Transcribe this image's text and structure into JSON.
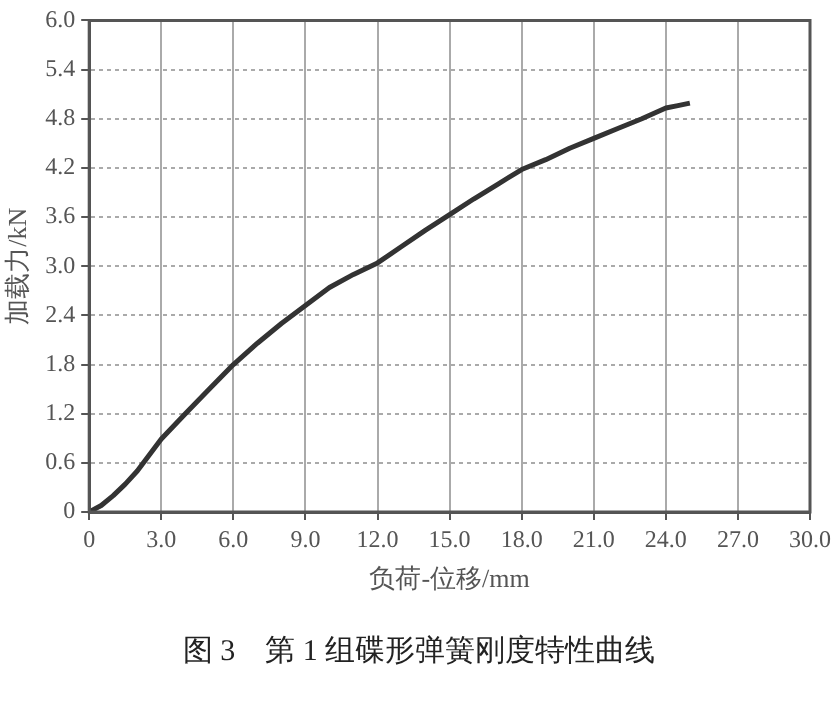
{
  "chart_data": {
    "type": "line",
    "xlabel": "负荷-位移/mm",
    "ylabel": "加载力/kN",
    "annotations": [
      "图 3　第 1 组碟形弹簧刚度特性曲线"
    ],
    "series": [
      {
        "color": "#333333",
        "x": [
          0,
          0.5,
          1,
          1.5,
          2,
          3,
          4,
          5,
          6,
          7,
          8,
          9,
          10,
          11,
          12,
          13,
          14,
          15,
          16,
          17,
          18,
          19,
          20,
          21,
          22,
          23,
          24,
          24.5,
          25
        ],
        "values": [
          0,
          0.08,
          0.2,
          0.34,
          0.5,
          0.89,
          1.2,
          1.5,
          1.8,
          2.06,
          2.3,
          2.52,
          2.74,
          2.9,
          3.04,
          3.24,
          3.44,
          3.63,
          3.82,
          4.0,
          4.18,
          4.3,
          4.44,
          4.56,
          4.68,
          4.8,
          4.93,
          4.96,
          4.99
        ]
      }
    ],
    "xlim": [
      0,
      30
    ],
    "xticks": [
      0,
      {
        "value": 3,
        "label": "3.0"
      },
      {
        "value": 6,
        "label": "6.0"
      },
      {
        "value": 9,
        "label": "9.0"
      },
      {
        "value": 12,
        "label": "12.0"
      },
      {
        "value": 15,
        "label": "15.0"
      },
      {
        "value": 18,
        "label": "18.0"
      },
      {
        "value": 21,
        "label": "21.0"
      },
      {
        "value": 24,
        "label": "24.0"
      },
      {
        "value": 27,
        "label": "27.0"
      },
      {
        "value": 30,
        "label": "30.0"
      }
    ],
    "ylim": [
      0,
      6
    ],
    "yticks": [
      0,
      {
        "value": 0.6,
        "label": "0.6"
      },
      {
        "value": 1.2,
        "label": "1.2"
      },
      {
        "value": 1.8,
        "label": "1.8"
      },
      {
        "value": 2.4,
        "label": "2.4"
      },
      {
        "value": 3,
        "label": "3.0"
      },
      {
        "value": 3.6,
        "label": "3.6"
      },
      {
        "value": 4.2,
        "label": "4.2"
      },
      {
        "value": 4.8,
        "label": "4.8"
      },
      {
        "value": 5.4,
        "label": "5.4"
      },
      {
        "value": 6,
        "label": "6.0"
      }
    ],
    "grid": true,
    "legend": false,
    "marker": "none",
    "line_style": "solid"
  }
}
